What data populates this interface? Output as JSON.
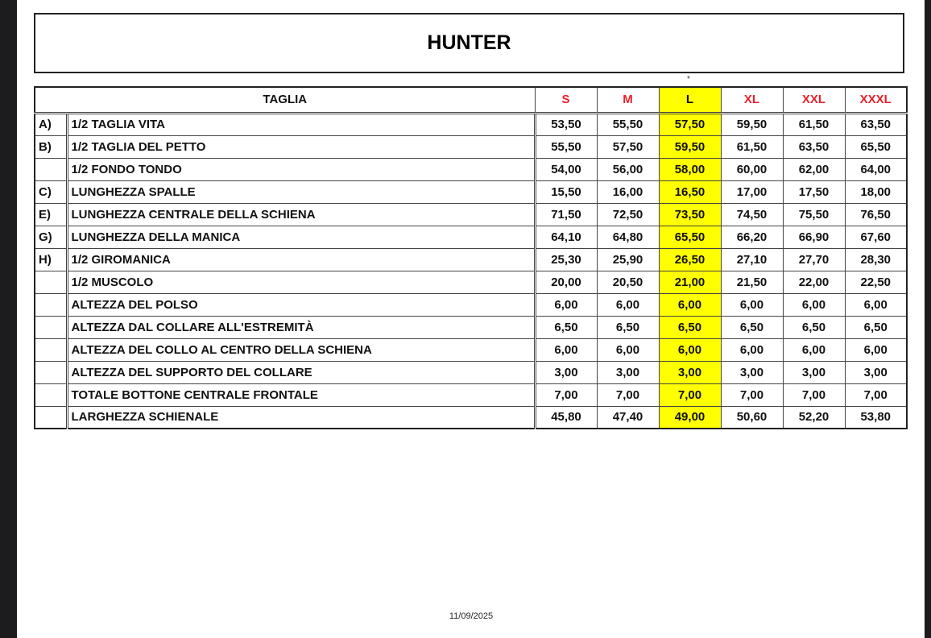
{
  "title": "HUNTER",
  "mark": "*",
  "header": {
    "label": "TAGLIA",
    "sizes": [
      "S",
      "M",
      "L",
      "XL",
      "XXL",
      "XXXL"
    ],
    "highlighted_size": "L"
  },
  "colors": {
    "size_header": "#e8202a",
    "highlight": "#ffff00"
  },
  "rows": [
    {
      "letter": "A)",
      "label": "1/2 TAGLIA VITA",
      "values": [
        "53,50",
        "55,50",
        "57,50",
        "59,50",
        "61,50",
        "63,50"
      ]
    },
    {
      "letter": "B)",
      "label": "1/2 TAGLIA DEL PETTO",
      "values": [
        "55,50",
        "57,50",
        "59,50",
        "61,50",
        "63,50",
        "65,50"
      ]
    },
    {
      "letter": "",
      "label": "1/2 FONDO TONDO",
      "values": [
        "54,00",
        "56,00",
        "58,00",
        "60,00",
        "62,00",
        "64,00"
      ]
    },
    {
      "letter": "C)",
      "label": "LUNGHEZZA SPALLE",
      "values": [
        "15,50",
        "16,00",
        "16,50",
        "17,00",
        "17,50",
        "18,00"
      ]
    },
    {
      "letter": "E)",
      "label": "LUNGHEZZA CENTRALE DELLA SCHIENA",
      "values": [
        "71,50",
        "72,50",
        "73,50",
        "74,50",
        "75,50",
        "76,50"
      ]
    },
    {
      "letter": "G)",
      "label": "LUNGHEZZA DELLA MANICA",
      "values": [
        "64,10",
        "64,80",
        "65,50",
        "66,20",
        "66,90",
        "67,60"
      ]
    },
    {
      "letter": "H)",
      "label": "1/2 GIROMANICA",
      "values": [
        "25,30",
        "25,90",
        "26,50",
        "27,10",
        "27,70",
        "28,30"
      ]
    },
    {
      "letter": "",
      "label": "1/2 MUSCOLO",
      "values": [
        "20,00",
        "20,50",
        "21,00",
        "21,50",
        "22,00",
        "22,50"
      ]
    },
    {
      "letter": "",
      "label": "ALTEZZA DEL POLSO",
      "values": [
        "6,00",
        "6,00",
        "6,00",
        "6,00",
        "6,00",
        "6,00"
      ]
    },
    {
      "letter": "",
      "label": "ALTEZZA DAL COLLARE ALL'ESTREMITÀ",
      "values": [
        "6,50",
        "6,50",
        "6,50",
        "6,50",
        "6,50",
        "6,50"
      ]
    },
    {
      "letter": "",
      "label": "ALTEZZA DEL COLLO AL CENTRO DELLA SCHIENA",
      "values": [
        "6,00",
        "6,00",
        "6,00",
        "6,00",
        "6,00",
        "6,00"
      ]
    },
    {
      "letter": "",
      "label": "ALTEZZA DEL SUPPORTO DEL COLLARE",
      "values": [
        "3,00",
        "3,00",
        "3,00",
        "3,00",
        "3,00",
        "3,00"
      ]
    },
    {
      "letter": "",
      "label": "TOTALE BOTTONE CENTRALE FRONTALE",
      "values": [
        "7,00",
        "7,00",
        "7,00",
        "7,00",
        "7,00",
        "7,00"
      ]
    },
    {
      "letter": "",
      "label": "LARGHEZZA SCHIENALE",
      "values": [
        "45,80",
        "47,40",
        "49,00",
        "50,60",
        "52,20",
        "53,80"
      ]
    }
  ],
  "footer": {
    "date": "11/09/2025"
  }
}
